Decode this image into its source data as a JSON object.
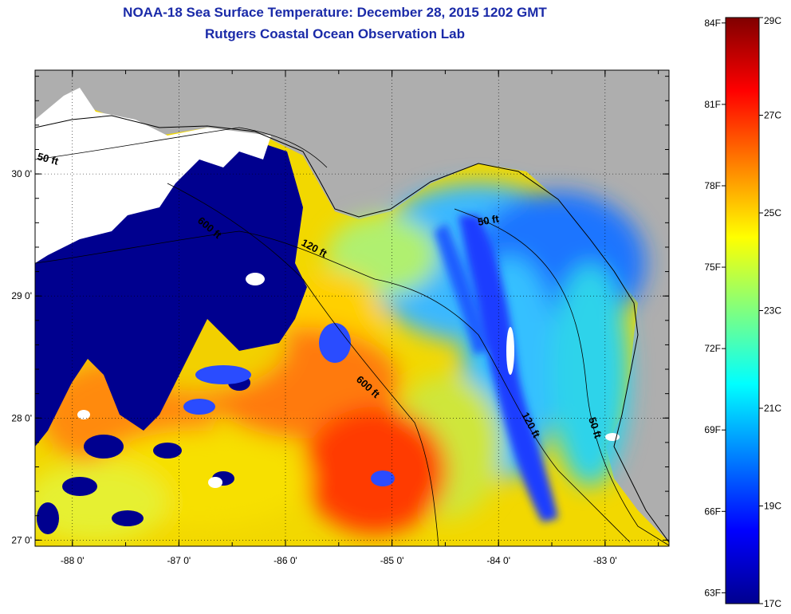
{
  "title": "NOAA-18 Sea Surface Temperature:  December 28, 2015 1202 GMT",
  "subtitle": "Rutgers Coastal Ocean Observation Lab",
  "map": {
    "lon_ticks": [
      "-88 0'",
      "-87 0'",
      "-86 0'",
      "-85 0'",
      "-84 0'",
      "-83 0'"
    ],
    "lon_values": [
      -88,
      -87,
      -86,
      -85,
      -84,
      -83
    ],
    "lat_ticks": [
      "30 0'",
      "29 0'",
      "28 0'",
      "27 0'"
    ],
    "lat_values": [
      30,
      29,
      28,
      27
    ],
    "lon_range": [
      -88.35,
      -82.4
    ],
    "lat_range": [
      26.95,
      30.85
    ],
    "grid": "dotted",
    "contour_labels": [
      "50 ft",
      "600 ft",
      "120 ft",
      "50 ft",
      "600 ft",
      "120 ft",
      "50 ft"
    ],
    "colors": {
      "land": "#aeaeae",
      "cloud": "#ffffff",
      "cold": "#00008f",
      "warm": "#ff3a00"
    }
  },
  "colorbar": {
    "left_labels": [
      "84F",
      "81F",
      "78F",
      "75F",
      "72F",
      "69F",
      "66F",
      "63F"
    ],
    "right_labels": [
      "29C",
      "27C",
      "25C",
      "23C",
      "21C",
      "19C",
      "17C"
    ],
    "range_c": [
      17,
      29
    ],
    "colormap": "jet"
  }
}
